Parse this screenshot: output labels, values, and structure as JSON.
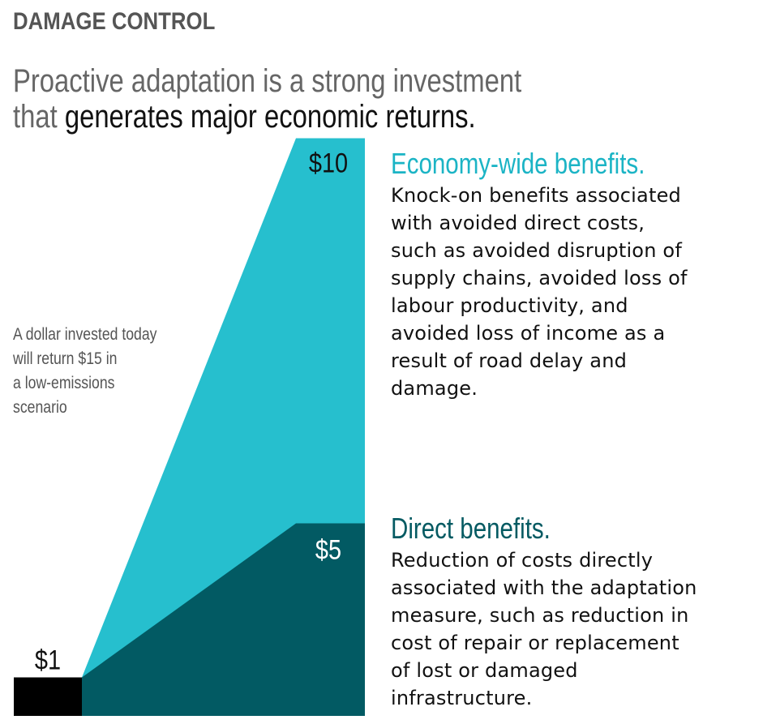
{
  "kicker": "DAMAGE CONTROL",
  "headline": {
    "line1": "Proactive adaptation is a strong investment",
    "line2_light": "that ",
    "line2_dark": "generates major economic returns."
  },
  "side_note": [
    "A dollar invested today",
    "will return $15 in",
    "a low-emissions",
    "scenario"
  ],
  "colors": {
    "economy_wide": "#26BFCE",
    "direct": "#025A63",
    "investment": "#000000",
    "economy_title": "#1BB4C5",
    "direct_title": "#045A62"
  },
  "chart_data": {
    "type": "area",
    "title": "",
    "xlabel": "",
    "ylabel": "",
    "ylim": [
      0,
      15
    ],
    "investment": {
      "label": "$1",
      "value": 1
    },
    "series": [
      {
        "name": "Direct benefits.",
        "label": "$5",
        "value": 5
      },
      {
        "name": "Economy-wide benefits.",
        "label": "$10",
        "value": 10
      }
    ]
  },
  "benefits": [
    {
      "title": "Economy-wide benefits.",
      "lines": [
        "Knock-on benefits associated",
        "with avoided direct costs,",
        "such as avoided disruption of",
        "supply chains, avoided loss of",
        "labour productivity, and",
        "avoided loss of income as a",
        "result of road delay and",
        "damage."
      ]
    },
    {
      "title": "Direct benefits.",
      "lines": [
        "Reduction of costs directly",
        "associated with the adaptation",
        "measure, such as reduction in",
        "cost of repair or replacement",
        "of lost or damaged",
        "infrastructure."
      ]
    }
  ]
}
